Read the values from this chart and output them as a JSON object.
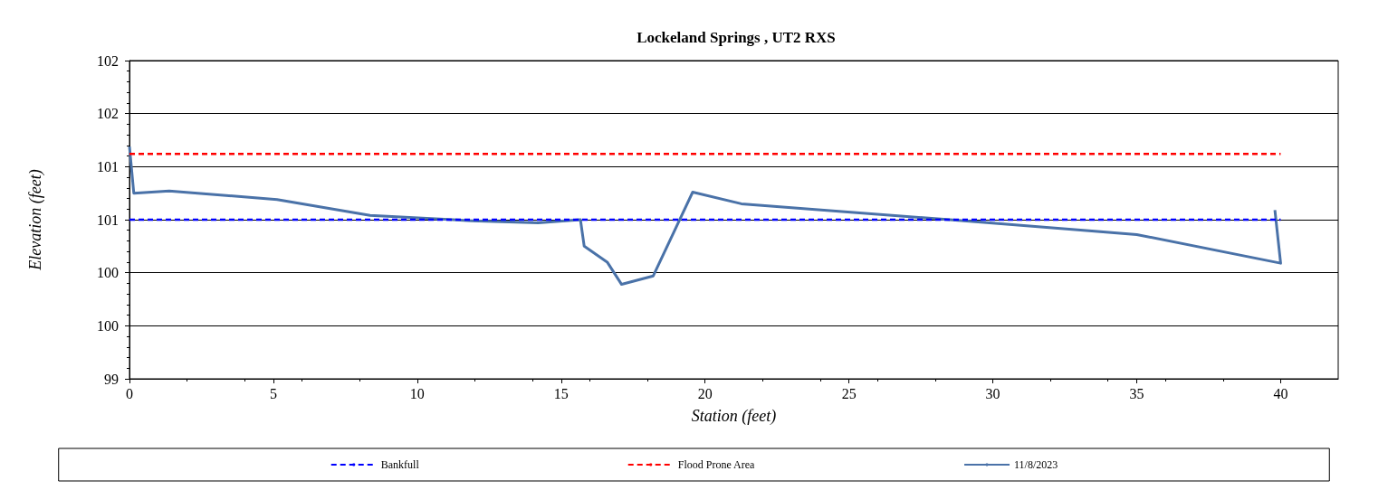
{
  "chart_data": {
    "type": "line",
    "title": "Lockeland Springs , UT2 RXS",
    "xlabel": "Station (feet)",
    "ylabel": "Elevation (feet)",
    "xlim": [
      0,
      42
    ],
    "xticks": [
      0,
      5,
      10,
      15,
      20,
      25,
      30,
      35,
      40
    ],
    "ylim": [
      99,
      102
    ],
    "yticks": [
      99,
      {
        "value": 99.5,
        "label": "100"
      },
      100,
      {
        "value": 100.5,
        "label": "101"
      },
      101,
      {
        "value": 101.5,
        "label": "102"
      },
      102
    ],
    "grid": "y",
    "legend": "bottom",
    "marker": "none",
    "series": [
      {
        "name": "Bankfull",
        "color": "#0000ff",
        "line_style": "dashed",
        "x": [
          0,
          40
        ],
        "values": [
          100.5,
          100.5
        ]
      },
      {
        "name": "Flood Prone Area",
        "color": "#ff0000",
        "line_style": "dashed",
        "x": [
          0,
          40
        ],
        "values": [
          101.12,
          101.12
        ]
      },
      {
        "name": "11/8/2023",
        "color": "#4a72a8",
        "line_style": "solid",
        "x": [
          0,
          0.15,
          1.38,
          5.13,
          8.36,
          11.9,
          14.2,
          15.67,
          15.8,
          16.6,
          17.1,
          18.2,
          19.57,
          21.26,
          28.5,
          35.0,
          40.0,
          39.8
        ],
        "values": [
          101.19,
          100.75,
          100.77,
          100.69,
          100.54,
          100.49,
          100.47,
          100.5,
          100.25,
          100.1,
          99.89,
          99.97,
          100.76,
          100.65,
          100.5,
          100.36,
          100.09,
          100.59
        ]
      }
    ]
  }
}
